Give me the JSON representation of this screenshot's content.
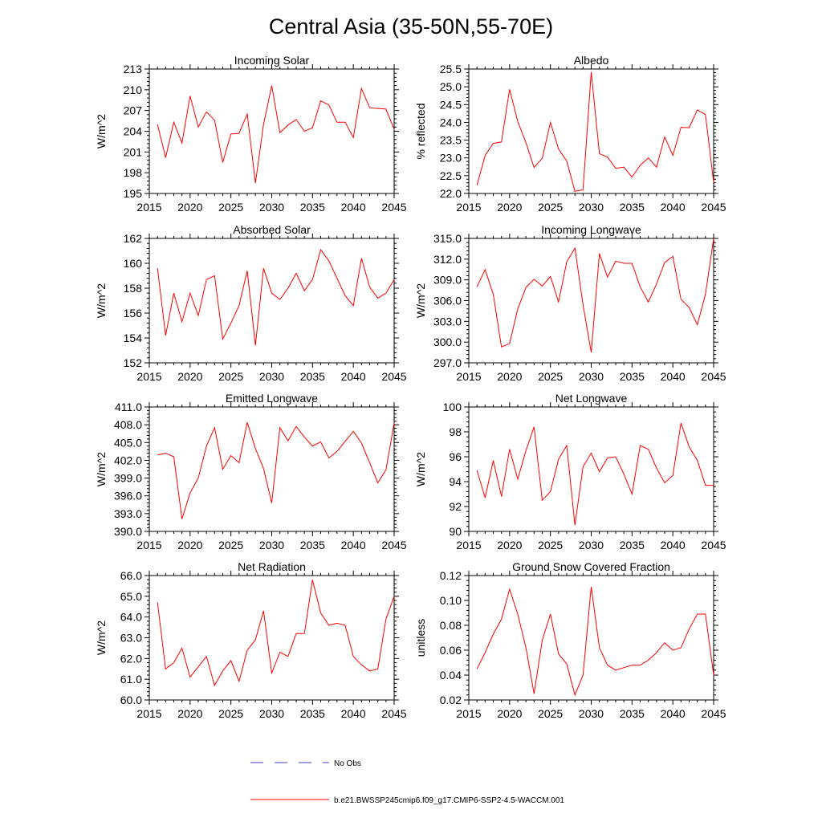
{
  "figure": {
    "title": "Central Asia (35-50N,55-70E)",
    "series_color": "#ff0000",
    "obs_color": "#3b3bd4",
    "legend": {
      "obs_label": "No Obs",
      "model_label": "b.e21.BWSSP245cmip6.f09_g17.CMIP6-SSP2-4.5-WACCM.001"
    }
  },
  "chart_data": [
    {
      "type": "line",
      "title": "Incoming Solar",
      "ylabel": "W/m^2",
      "xlim": [
        2015,
        2045
      ],
      "ylim": [
        195,
        213
      ],
      "yticks": [
        "195",
        "198",
        "201",
        "204",
        "207",
        "210",
        "213"
      ],
      "xticks": [
        "2015",
        "2020",
        "2025",
        "2030",
        "2035",
        "2040",
        "2045"
      ],
      "x": [
        2016,
        2017,
        2018,
        2019,
        2020,
        2021,
        2022,
        2023,
        2024,
        2025,
        2026,
        2027,
        2028,
        2029,
        2030,
        2031,
        2032,
        2033,
        2034,
        2035,
        2036,
        2037,
        2038,
        2039,
        2040,
        2041,
        2042,
        2043,
        2044,
        2045
      ],
      "y": [
        205.0,
        200.2,
        205.3,
        202.3,
        209.1,
        204.6,
        206.8,
        205.6,
        199.5,
        203.6,
        203.7,
        206.5,
        196.5,
        205.0,
        210.6,
        203.8,
        204.9,
        205.7,
        204.0,
        204.5,
        208.4,
        207.8,
        205.3,
        205.3,
        203.1,
        210.2,
        207.4,
        207.3,
        207.2,
        204.3
      ],
      "series": [
        {
          "values_ref": "y"
        }
      ]
    },
    {
      "type": "line",
      "title": "Albedo",
      "ylabel": "% reflected",
      "xlim": [
        2015,
        2045
      ],
      "ylim": [
        22.0,
        25.5
      ],
      "yticks": [
        "22.0",
        "22.5",
        "23.0",
        "23.5",
        "24.0",
        "24.5",
        "25.0",
        "25.5"
      ],
      "xticks": [
        "2015",
        "2020",
        "2025",
        "2030",
        "2035",
        "2040",
        "2045"
      ],
      "x": [
        2016,
        2017,
        2018,
        2019,
        2020,
        2021,
        2022,
        2023,
        2024,
        2025,
        2026,
        2027,
        2028,
        2029,
        2030,
        2031,
        2032,
        2033,
        2034,
        2035,
        2036,
        2037,
        2038,
        2039,
        2040,
        2041,
        2042,
        2043,
        2044,
        2045
      ],
      "y": [
        22.23,
        23.07,
        23.41,
        23.45,
        24.93,
        24.02,
        23.43,
        22.73,
        22.99,
        24.0,
        23.25,
        22.91,
        22.06,
        22.1,
        25.42,
        23.12,
        23.02,
        22.71,
        22.74,
        22.46,
        22.79,
        23.0,
        22.74,
        23.59,
        23.07,
        23.86,
        23.85,
        24.35,
        24.22,
        22.31
      ]
    },
    {
      "type": "line",
      "title": "Absorbed Solar",
      "ylabel": "W/m^2",
      "xlim": [
        2015,
        2045
      ],
      "ylim": [
        152,
        162
      ],
      "yticks": [
        "152",
        "154",
        "156",
        "158",
        "160",
        "162"
      ],
      "xticks": [
        "2015",
        "2020",
        "2025",
        "2030",
        "2035",
        "2040",
        "2045"
      ],
      "x": [
        2016,
        2017,
        2018,
        2019,
        2020,
        2021,
        2022,
        2023,
        2024,
        2025,
        2026,
        2027,
        2028,
        2029,
        2030,
        2031,
        2032,
        2033,
        2034,
        2035,
        2036,
        2037,
        2038,
        2039,
        2040,
        2041,
        2042,
        2043,
        2044,
        2045
      ],
      "y": [
        159.6,
        154.2,
        157.6,
        155.3,
        157.6,
        155.8,
        158.7,
        159.0,
        153.9,
        155.2,
        156.6,
        159.4,
        153.4,
        159.6,
        157.6,
        157.1,
        158.0,
        159.2,
        157.8,
        158.7,
        161.1,
        160.2,
        158.8,
        157.4,
        156.6,
        160.4,
        158.1,
        157.2,
        157.6,
        158.7
      ]
    },
    {
      "type": "line",
      "title": "Incoming Longwave",
      "ylabel": "W/m^2",
      "xlim": [
        2015,
        2045
      ],
      "ylim": [
        297.0,
        315.0
      ],
      "yticks": [
        "297.0",
        "300.0",
        "303.0",
        "306.0",
        "309.0",
        "312.0",
        "315.0"
      ],
      "xticks": [
        "2015",
        "2020",
        "2025",
        "2030",
        "2035",
        "2040",
        "2045"
      ],
      "x": [
        2016,
        2017,
        2018,
        2019,
        2020,
        2021,
        2022,
        2023,
        2024,
        2025,
        2026,
        2027,
        2028,
        2029,
        2030,
        2031,
        2032,
        2033,
        2034,
        2035,
        2036,
        2037,
        2038,
        2039,
        2040,
        2041,
        2042,
        2043,
        2044,
        2045
      ],
      "y": [
        308.0,
        310.5,
        306.9,
        299.3,
        299.8,
        304.8,
        307.9,
        309.1,
        308.1,
        309.5,
        305.8,
        311.6,
        313.6,
        305.4,
        298.5,
        312.8,
        309.4,
        311.7,
        311.4,
        311.4,
        308.0,
        305.8,
        308.4,
        311.5,
        312.4,
        306.2,
        305.0,
        302.5,
        306.9,
        315.0
      ]
    },
    {
      "type": "line",
      "title": "Emitted Longwave",
      "ylabel": "W/m^2",
      "xlim": [
        2015,
        2045
      ],
      "ylim": [
        390.0,
        411.0
      ],
      "yticks": [
        "390.0",
        "393.0",
        "396.0",
        "399.0",
        "402.0",
        "405.0",
        "408.0",
        "411.0"
      ],
      "xticks": [
        "2015",
        "2020",
        "2025",
        "2030",
        "2035",
        "2040",
        "2045"
      ],
      "x": [
        2016,
        2017,
        2018,
        2019,
        2020,
        2021,
        2022,
        2023,
        2024,
        2025,
        2026,
        2027,
        2028,
        2029,
        2030,
        2031,
        2032,
        2033,
        2034,
        2035,
        2036,
        2037,
        2038,
        2039,
        2040,
        2041,
        2042,
        2043,
        2044,
        2045
      ],
      "y": [
        402.9,
        403.2,
        402.6,
        392.1,
        396.5,
        399.0,
        404.4,
        407.5,
        400.5,
        402.8,
        401.6,
        408.4,
        404.0,
        400.6,
        394.8,
        407.5,
        405.3,
        407.7,
        405.9,
        404.4,
        405.1,
        402.4,
        403.5,
        405.2,
        406.9,
        404.9,
        401.6,
        398.2,
        400.4,
        408.3
      ]
    },
    {
      "type": "line",
      "title": "Net Longwave",
      "ylabel": "W/m^2",
      "xlim": [
        2015,
        2045
      ],
      "ylim": [
        90,
        100
      ],
      "yticks": [
        "90",
        "92",
        "94",
        "96",
        "98",
        "100"
      ],
      "xticks": [
        "2015",
        "2020",
        "2025",
        "2030",
        "2035",
        "2040",
        "2045"
      ],
      "x": [
        2016,
        2017,
        2018,
        2019,
        2020,
        2021,
        2022,
        2023,
        2024,
        2025,
        2026,
        2027,
        2028,
        2029,
        2030,
        2031,
        2032,
        2033,
        2034,
        2035,
        2036,
        2037,
        2038,
        2039,
        2040,
        2041,
        2042,
        2043,
        2044,
        2045
      ],
      "y": [
        94.9,
        92.7,
        95.7,
        92.8,
        96.6,
        94.2,
        96.5,
        98.4,
        92.5,
        93.2,
        95.8,
        96.9,
        90.5,
        95.2,
        96.3,
        94.8,
        95.9,
        96.0,
        94.6,
        93.0,
        96.9,
        96.6,
        95.1,
        93.9,
        94.5,
        98.7,
        96.8,
        95.7,
        93.7,
        93.7
      ]
    },
    {
      "type": "line",
      "title": "Net Radiation",
      "ylabel": "W/m^2",
      "xlim": [
        2015,
        2045
      ],
      "ylim": [
        60.0,
        66.0
      ],
      "yticks": [
        "60.0",
        "61.0",
        "62.0",
        "63.0",
        "64.0",
        "65.0",
        "66.0"
      ],
      "xticks": [
        "2015",
        "2020",
        "2025",
        "2030",
        "2035",
        "2040",
        "2045"
      ],
      "x": [
        2016,
        2017,
        2018,
        2019,
        2020,
        2021,
        2022,
        2023,
        2024,
        2025,
        2026,
        2027,
        2028,
        2029,
        2030,
        2031,
        2032,
        2033,
        2034,
        2035,
        2036,
        2037,
        2038,
        2039,
        2040,
        2041,
        2042,
        2043,
        2044,
        2045
      ],
      "y": [
        64.7,
        61.5,
        61.8,
        62.5,
        61.1,
        61.6,
        62.1,
        60.7,
        61.4,
        61.9,
        60.9,
        62.4,
        62.9,
        64.3,
        61.3,
        62.3,
        62.1,
        63.2,
        63.2,
        65.8,
        64.2,
        63.6,
        63.7,
        63.6,
        62.1,
        61.7,
        61.4,
        61.5,
        63.9,
        65.0
      ]
    },
    {
      "type": "line",
      "title": "Ground Snow Covered Fraction",
      "ylabel": "unitless",
      "xlim": [
        2015,
        2045
      ],
      "ylim": [
        0.02,
        0.12
      ],
      "yticks": [
        "0.02",
        "0.04",
        "0.06",
        "0.08",
        "0.10",
        "0.12"
      ],
      "xticks": [
        "2015",
        "2020",
        "2025",
        "2030",
        "2035",
        "2040",
        "2045"
      ],
      "x": [
        2016,
        2017,
        2018,
        2019,
        2020,
        2021,
        2022,
        2023,
        2024,
        2025,
        2026,
        2027,
        2028,
        2029,
        2030,
        2031,
        2032,
        2033,
        2034,
        2035,
        2036,
        2037,
        2038,
        2039,
        2040,
        2041,
        2042,
        2043,
        2044,
        2045
      ],
      "y": [
        0.045,
        0.058,
        0.073,
        0.085,
        0.109,
        0.089,
        0.062,
        0.025,
        0.068,
        0.089,
        0.057,
        0.049,
        0.024,
        0.04,
        0.111,
        0.062,
        0.048,
        0.044,
        0.046,
        0.048,
        0.048,
        0.052,
        0.058,
        0.066,
        0.06,
        0.062,
        0.077,
        0.089,
        0.089,
        0.04
      ]
    }
  ]
}
